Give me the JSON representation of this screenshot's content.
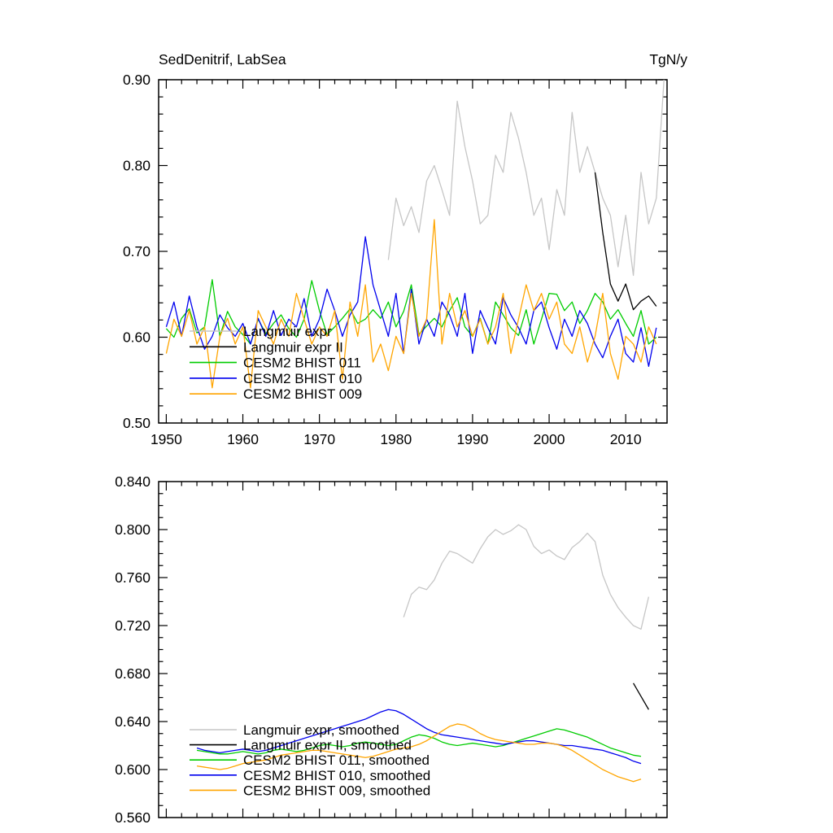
{
  "chart_data": [
    {
      "type": "line",
      "title": "SedDenitrif, LabSea",
      "units_label": "TgN/y",
      "x_axis": {
        "min": 1949,
        "max": 2015.4,
        "minor_step": 2,
        "show_labels": true,
        "major_ticks": [
          1950,
          1960,
          1970,
          1980,
          1990,
          2000,
          2010
        ],
        "major_labels": [
          "1950",
          "1960",
          "1970",
          "1980",
          "1990",
          "2000",
          "2010"
        ]
      },
      "y_axis": {
        "min": 0.5,
        "max": 0.9,
        "minor_step": 0.02,
        "major_ticks": [
          0.5,
          0.6,
          0.7,
          0.8,
          0.9
        ],
        "major_labels": [
          "0.50",
          "0.60",
          "0.70",
          "0.80",
          "0.90"
        ]
      },
      "legend": [
        {
          "label": "Langmuir expr",
          "series": 0
        },
        {
          "label": "Langmuir expr II",
          "series": 1
        },
        {
          "label": "CESM2 BHIST 011",
          "series": 2
        },
        {
          "label": "CESM2 BHIST 010",
          "series": 3
        },
        {
          "label": "CESM2 BHIST 009",
          "series": 4
        }
      ],
      "series": [
        {
          "name": "Langmuir expr",
          "color": "#c6c6c6",
          "start_year": 1979,
          "values": [
            0.69,
            0.762,
            0.73,
            0.752,
            0.722,
            0.782,
            0.8,
            0.772,
            0.742,
            0.875,
            0.822,
            0.782,
            0.732,
            0.742,
            0.812,
            0.792,
            0.862,
            0.832,
            0.792,
            0.742,
            0.762,
            0.702,
            0.772,
            0.742,
            0.862,
            0.792,
            0.822,
            0.792,
            0.762,
            0.742,
            0.682,
            0.742,
            0.672,
            0.792,
            0.732,
            0.762,
            0.9
          ]
        },
        {
          "name": "Langmuir expr II",
          "color": "#000000",
          "start_year": 2006,
          "values": [
            0.792,
            0.722,
            0.662,
            0.642,
            0.662,
            0.632,
            0.642,
            0.648,
            0.636
          ]
        },
        {
          "name": "CESM2 BHIST 011",
          "color": "#00cc00",
          "start_year": 1950,
          "values": [
            0.61,
            0.6,
            0.622,
            0.633,
            0.605,
            0.612,
            0.667,
            0.601,
            0.63,
            0.612,
            0.603,
            0.592,
            0.621,
            0.604,
            0.616,
            0.626,
            0.61,
            0.6,
            0.621,
            0.666,
            0.631,
            0.603,
            0.612,
            0.622,
            0.633,
            0.616,
            0.621,
            0.632,
            0.622,
            0.641,
            0.612,
            0.63,
            0.661,
            0.603,
            0.613,
            0.622,
            0.612,
            0.631,
            0.646,
            0.612,
            0.601,
            0.622,
            0.592,
            0.641,
            0.626,
            0.611,
            0.602,
            0.632,
            0.592,
            0.621,
            0.651,
            0.65,
            0.631,
            0.641,
            0.616,
            0.631,
            0.651,
            0.641,
            0.621,
            0.632,
            0.616,
            0.601,
            0.631,
            0.592,
            0.6
          ]
        },
        {
          "name": "CESM2 BHIST 010",
          "color": "#0000ee",
          "start_year": 1950,
          "values": [
            0.612,
            0.641,
            0.601,
            0.648,
            0.612,
            0.586,
            0.601,
            0.626,
            0.611,
            0.601,
            0.616,
            0.592,
            0.622,
            0.601,
            0.631,
            0.602,
            0.621,
            0.612,
            0.645,
            0.601,
            0.621,
            0.656,
            0.631,
            0.601,
            0.626,
            0.641,
            0.717,
            0.661,
            0.631,
            0.601,
            0.651,
            0.581,
            0.656,
            0.592,
            0.621,
            0.601,
            0.641,
            0.626,
            0.601,
            0.651,
            0.581,
            0.631,
            0.611,
            0.592,
            0.646,
            0.626,
            0.611,
            0.592,
            0.631,
            0.641,
            0.611,
            0.586,
            0.621,
            0.601,
            0.631,
            0.616,
            0.592,
            0.576,
            0.601,
            0.621,
            0.581,
            0.571,
            0.611,
            0.566,
            0.611
          ]
        },
        {
          "name": "CESM2 BHIST 009",
          "color": "#ffa500",
          "start_year": 1950,
          "values": [
            0.581,
            0.621,
            0.601,
            0.631,
            0.592,
            0.612,
            0.541,
            0.601,
            0.622,
            0.592,
            0.612,
            0.541,
            0.631,
            0.612,
            0.592,
            0.621,
            0.601,
            0.651,
            0.621,
            0.592,
            0.612,
            0.601,
            0.631,
            0.551,
            0.641,
            0.601,
            0.661,
            0.571,
            0.592,
            0.561,
            0.601,
            0.581,
            0.651,
            0.601,
            0.621,
            0.737,
            0.592,
            0.651,
            0.612,
            0.631,
            0.601,
            0.621,
            0.592,
            0.612,
            0.651,
            0.581,
            0.621,
            0.661,
            0.631,
            0.651,
            0.621,
            0.641,
            0.592,
            0.581,
            0.612,
            0.571,
            0.601,
            0.651,
            0.581,
            0.551,
            0.601,
            0.592,
            0.571,
            0.612,
            0.592
          ]
        }
      ]
    },
    {
      "type": "line",
      "title": "",
      "units_label": "",
      "x_axis": {
        "min": 1949,
        "max": 2015.4,
        "minor_step": 2,
        "show_labels": false,
        "major_ticks": [
          1950,
          1960,
          1970,
          1980,
          1990,
          2000,
          2010
        ],
        "major_labels": [
          "1950",
          "1960",
          "1970",
          "1980",
          "1990",
          "2000",
          "2010"
        ]
      },
      "y_axis": {
        "min": 0.56,
        "max": 0.84,
        "minor_step": 0.01,
        "major_ticks": [
          0.56,
          0.6,
          0.64,
          0.68,
          0.72,
          0.76,
          0.8,
          0.84
        ],
        "major_labels": [
          "0.560",
          "0.600",
          "0.640",
          "0.680",
          "0.720",
          "0.760",
          "0.800",
          "0.840"
        ]
      },
      "legend": [
        {
          "label": "Langmuir expr, smoothed",
          "series": 0
        },
        {
          "label": "Langmuir expr II, smoothed",
          "series": 1
        },
        {
          "label": "CESM2 BHIST 011, smoothed",
          "series": 2
        },
        {
          "label": "CESM2 BHIST 010, smoothed",
          "series": 3
        },
        {
          "label": "CESM2 BHIST 009, smoothed",
          "series": 4
        }
      ],
      "series": [
        {
          "name": "Langmuir expr smoothed",
          "color": "#c6c6c6",
          "start_year": 1981,
          "values": [
            0.727,
            0.746,
            0.752,
            0.75,
            0.758,
            0.772,
            0.782,
            0.78,
            0.776,
            0.772,
            0.784,
            0.794,
            0.8,
            0.796,
            0.799,
            0.804,
            0.8,
            0.786,
            0.78,
            0.783,
            0.778,
            0.775,
            0.785,
            0.79,
            0.797,
            0.79,
            0.762,
            0.746,
            0.735,
            0.727,
            0.72,
            0.717,
            0.744
          ]
        },
        {
          "name": "Langmuir expr II smoothed",
          "color": "#000000",
          "start_year": 2011,
          "values": [
            0.672,
            0.661,
            0.65
          ]
        },
        {
          "name": "CESM2 BHIST 011 smoothed",
          "color": "#00cc00",
          "start_year": 1954,
          "values": [
            0.616,
            0.615,
            0.614,
            0.613,
            0.613,
            0.614,
            0.615,
            0.614,
            0.613,
            0.614,
            0.616,
            0.617,
            0.616,
            0.615,
            0.616,
            0.618,
            0.62,
            0.621,
            0.62,
            0.619,
            0.62,
            0.622,
            0.623,
            0.622,
            0.621,
            0.62,
            0.621,
            0.624,
            0.627,
            0.629,
            0.628,
            0.626,
            0.623,
            0.621,
            0.62,
            0.621,
            0.622,
            0.621,
            0.62,
            0.619,
            0.62,
            0.622,
            0.624,
            0.626,
            0.628,
            0.63,
            0.632,
            0.634,
            0.633,
            0.631,
            0.629,
            0.627,
            0.624,
            0.621,
            0.618,
            0.616,
            0.614,
            0.612,
            0.611
          ]
        },
        {
          "name": "CESM2 BHIST 010 smoothed",
          "color": "#0000ee",
          "start_year": 1954,
          "values": [
            0.618,
            0.616,
            0.615,
            0.614,
            0.615,
            0.616,
            0.617,
            0.616,
            0.615,
            0.616,
            0.618,
            0.62,
            0.622,
            0.624,
            0.626,
            0.628,
            0.63,
            0.632,
            0.634,
            0.636,
            0.638,
            0.64,
            0.642,
            0.645,
            0.648,
            0.65,
            0.649,
            0.646,
            0.642,
            0.638,
            0.634,
            0.631,
            0.629,
            0.628,
            0.627,
            0.626,
            0.625,
            0.624,
            0.623,
            0.622,
            0.621,
            0.622,
            0.623,
            0.624,
            0.624,
            0.623,
            0.622,
            0.621,
            0.62,
            0.62,
            0.619,
            0.618,
            0.617,
            0.616,
            0.614,
            0.612,
            0.61,
            0.607,
            0.605
          ]
        },
        {
          "name": "CESM2 BHIST 009 smoothed",
          "color": "#ffa500",
          "start_year": 1954,
          "values": [
            0.603,
            0.602,
            0.601,
            0.6,
            0.601,
            0.603,
            0.605,
            0.606,
            0.607,
            0.608,
            0.61,
            0.612,
            0.613,
            0.614,
            0.615,
            0.616,
            0.616,
            0.615,
            0.614,
            0.613,
            0.612,
            0.611,
            0.61,
            0.611,
            0.613,
            0.615,
            0.617,
            0.618,
            0.619,
            0.621,
            0.624,
            0.628,
            0.632,
            0.636,
            0.638,
            0.637,
            0.634,
            0.63,
            0.627,
            0.625,
            0.624,
            0.623,
            0.622,
            0.621,
            0.621,
            0.622,
            0.622,
            0.621,
            0.619,
            0.616,
            0.612,
            0.608,
            0.604,
            0.6,
            0.597,
            0.594,
            0.592,
            0.59,
            0.592
          ]
        }
      ]
    }
  ]
}
